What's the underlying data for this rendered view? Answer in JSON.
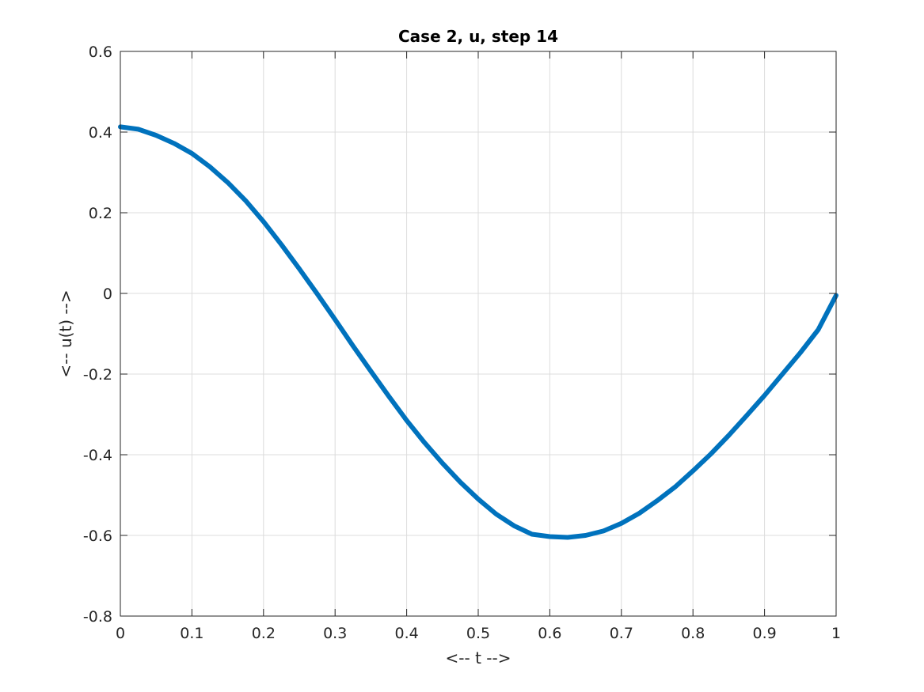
{
  "chart_data": {
    "type": "line",
    "title": "Case 2, u, step 14",
    "xlabel": "<-- t -->",
    "ylabel": "<-- u(t) -->",
    "xlim": [
      0,
      1
    ],
    "ylim": [
      -0.8,
      0.6
    ],
    "xticks": [
      0,
      0.1,
      0.2,
      0.3,
      0.4,
      0.5,
      0.6,
      0.7,
      0.8,
      0.9,
      1
    ],
    "xtick_labels": [
      "0",
      "0.1",
      "0.2",
      "0.3",
      "0.4",
      "0.5",
      "0.6",
      "0.7",
      "0.8",
      "0.9",
      "1"
    ],
    "yticks": [
      -0.8,
      -0.6,
      -0.4,
      -0.2,
      0,
      0.2,
      0.4,
      0.6
    ],
    "ytick_labels": [
      "-0.8",
      "-0.6",
      "-0.4",
      "-0.2",
      "0",
      "0.2",
      "0.4",
      "0.6"
    ],
    "grid": true,
    "legend": false,
    "series": [
      {
        "color": "#0072BD",
        "x": [
          0,
          0.025,
          0.05,
          0.075,
          0.1,
          0.125,
          0.15,
          0.175,
          0.2,
          0.225,
          0.25,
          0.275,
          0.3,
          0.325,
          0.35,
          0.375,
          0.4,
          0.425,
          0.45,
          0.475,
          0.5,
          0.525,
          0.55,
          0.575,
          0.6,
          0.625,
          0.65,
          0.675,
          0.7,
          0.725,
          0.75,
          0.775,
          0.8,
          0.825,
          0.85,
          0.875,
          0.9,
          0.925,
          0.95,
          0.975,
          1
        ],
        "values": [
          0.413,
          0.407,
          0.392,
          0.372,
          0.347,
          0.314,
          0.275,
          0.23,
          0.178,
          0.121,
          0.061,
          -0.001,
          -0.065,
          -0.13,
          -0.193,
          -0.255,
          -0.315,
          -0.37,
          -0.421,
          -0.468,
          -0.51,
          -0.547,
          -0.576,
          -0.597,
          -0.603,
          -0.605,
          -0.6,
          -0.589,
          -0.57,
          -0.545,
          -0.514,
          -0.48,
          -0.44,
          -0.398,
          -0.352,
          -0.303,
          -0.253,
          -0.2,
          -0.147,
          -0.09,
          -0.005
        ]
      }
    ]
  }
}
